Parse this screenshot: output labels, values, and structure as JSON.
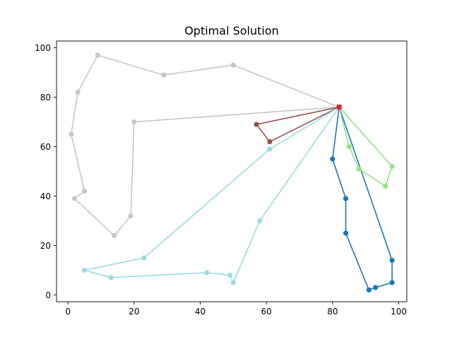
{
  "chart_data": {
    "type": "line",
    "title": "Optimal Solution",
    "xlabel": "",
    "ylabel": "",
    "xlim": [
      -3.45,
      102.45
    ],
    "ylim": [
      -2.75,
      102.75
    ],
    "xticks": [
      0,
      20,
      40,
      60,
      80,
      100
    ],
    "yticks": [
      0,
      20,
      40,
      60,
      80,
      100
    ],
    "grid": false,
    "legend": "none",
    "depot": {
      "x": 82,
      "y": 76,
      "color": "#d62728"
    },
    "routes": [
      {
        "color": "#c7c7c7",
        "points": [
          [
            82,
            76
          ],
          [
            50,
            93
          ],
          [
            29,
            89
          ],
          [
            9,
            97
          ],
          [
            3,
            82
          ],
          [
            1,
            65
          ],
          [
            5,
            42
          ],
          [
            2,
            39
          ],
          [
            14,
            24
          ],
          [
            19,
            32
          ],
          [
            20,
            70
          ],
          [
            82,
            76
          ]
        ]
      },
      {
        "color": "#8c564b",
        "points": [
          [
            82,
            76
          ],
          [
            57,
            69
          ],
          [
            61,
            62
          ],
          [
            82,
            76
          ]
        ]
      },
      {
        "color": "#9edae5",
        "points": [
          [
            82,
            76
          ],
          [
            61,
            59
          ],
          [
            23,
            15
          ],
          [
            5,
            10
          ],
          [
            13,
            7
          ],
          [
            42,
            9
          ],
          [
            49,
            8
          ],
          [
            50,
            5
          ],
          [
            58,
            30
          ],
          [
            82,
            76
          ]
        ]
      },
      {
        "color": "#1f77b4",
        "points": [
          [
            82,
            76
          ],
          [
            80,
            55
          ],
          [
            84,
            39
          ],
          [
            84,
            25
          ],
          [
            91,
            2
          ],
          [
            93,
            3
          ],
          [
            98,
            5
          ],
          [
            98,
            14
          ],
          [
            82,
            76
          ]
        ]
      },
      {
        "color": "#98df8a",
        "points": [
          [
            82,
            76
          ],
          [
            85,
            60
          ],
          [
            88,
            51
          ],
          [
            96,
            44
          ],
          [
            98,
            52
          ],
          [
            82,
            76
          ]
        ]
      }
    ]
  }
}
